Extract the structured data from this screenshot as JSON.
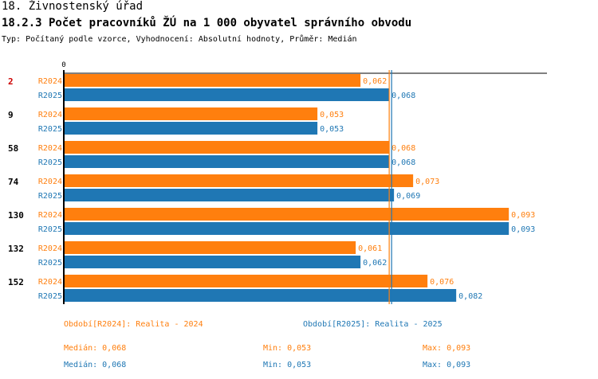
{
  "header": {
    "title": "18. Živnostenský úřad",
    "subtitle": "18.2.3 Počet pracovníků ŽÚ na 1 000 obyvatel správního obvodu",
    "type_line": "Typ: Počítaný podle vzorce, Vyhodnocení: Absolutní hodnoty, Průměr: Medián"
  },
  "colors": {
    "r2024": "#ff7f0e",
    "r2025": "#1f77b4",
    "highlight": "#cc0000",
    "axis": "#000000"
  },
  "chart_data": {
    "type": "bar",
    "orientation": "horizontal",
    "axis_zero_label": "0",
    "xlim": [
      0,
      0.1033
    ],
    "categories": [
      "2",
      "9",
      "58",
      "74",
      "130",
      "132",
      "152"
    ],
    "highlight_category": "2",
    "series": [
      {
        "name": "R2024",
        "values": [
          0.062,
          0.053,
          0.068,
          0.073,
          0.093,
          0.061,
          0.076
        ],
        "labels": [
          "0,062",
          "0,053",
          "0,068",
          "0,073",
          "0,093",
          "0,061",
          "0,076"
        ]
      },
      {
        "name": "R2025",
        "values": [
          0.068,
          0.053,
          0.068,
          0.069,
          0.093,
          0.062,
          0.082
        ],
        "labels": [
          "0,068",
          "0,053",
          "0,068",
          "0,069",
          "0,093",
          "0,062",
          "0,082"
        ]
      }
    ],
    "median_lines": [
      0.068,
      0.0685
    ]
  },
  "legend": {
    "r2024": "Období[R2024]: Realita - 2024",
    "r2025": "Období[R2025]: Realita - 2025"
  },
  "stats": {
    "r2024": {
      "median": "Medián: 0,068",
      "min": "Min: 0,053",
      "max": "Max: 0,093"
    },
    "r2025": {
      "median": "Medián: 0,068",
      "min": "Min: 0,053",
      "max": "Max: 0,093"
    }
  }
}
